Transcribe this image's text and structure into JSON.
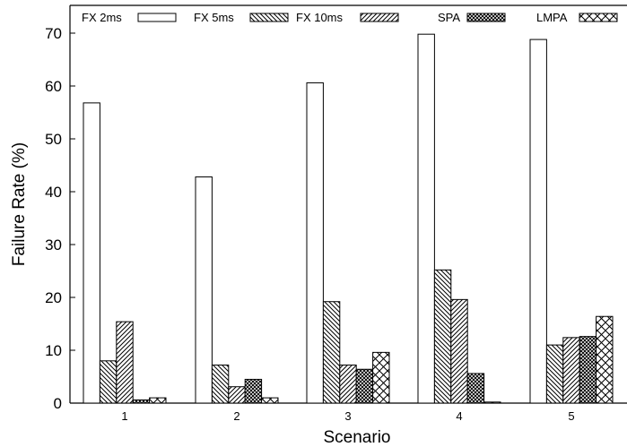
{
  "chart_data": {
    "type": "bar",
    "categories": [
      "1",
      "2",
      "3",
      "4",
      "5"
    ],
    "series": [
      {
        "name": "FX 2ms",
        "pattern": "none",
        "values": [
          56.8,
          42.8,
          60.6,
          69.8,
          68.8
        ]
      },
      {
        "name": "FX 5ms",
        "pattern": "backdiag",
        "values": [
          8.0,
          7.2,
          19.2,
          25.2,
          11.0
        ]
      },
      {
        "name": "FX 10ms",
        "pattern": "diag",
        "values": [
          15.4,
          3.1,
          7.2,
          19.6,
          12.4
        ]
      },
      {
        "name": "SPA",
        "pattern": "dense",
        "values": [
          0.6,
          4.5,
          6.4,
          5.6,
          12.6
        ]
      },
      {
        "name": "LMPA",
        "pattern": "cross",
        "values": [
          1.0,
          1.0,
          9.6,
          0.2,
          16.4
        ]
      }
    ],
    "title": "",
    "xlabel": "Scenario",
    "ylabel": "Failure Rate (%)",
    "ylim": [
      0,
      70
    ],
    "yticks": [
      0,
      10,
      20,
      30,
      40,
      50,
      60,
      70
    ],
    "grid": false,
    "legend_position": "top"
  }
}
